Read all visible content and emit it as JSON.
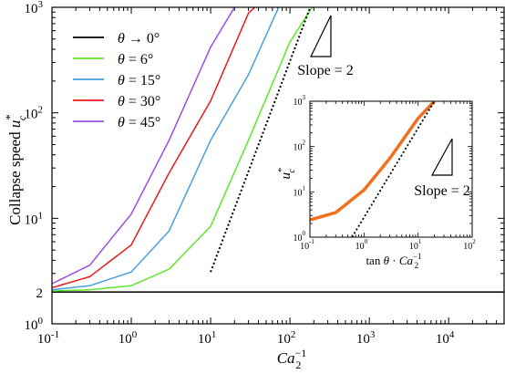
{
  "chart_data": [
    {
      "type": "line",
      "xscale": "log",
      "yscale": "log",
      "xlim": [
        0.1,
        50000
      ],
      "ylim": [
        1,
        1000
      ],
      "xlabel_main": "Ca",
      "xlabel_sub": "2",
      "xlabel_sup": "−1",
      "ylabel_main": "Collapse speed u",
      "ylabel_sub": "c",
      "ylabel_sup": "*",
      "x_ticks": [
        {
          "value": 0.1,
          "base": "10",
          "exp": "-1"
        },
        {
          "value": 1,
          "base": "10",
          "exp": "0"
        },
        {
          "value": 10,
          "base": "10",
          "exp": "1"
        },
        {
          "value": 100,
          "base": "10",
          "exp": "2"
        },
        {
          "value": 1000,
          "base": "10",
          "exp": "3"
        },
        {
          "value": 10000,
          "base": "10",
          "exp": "4"
        }
      ],
      "y_ticks": [
        {
          "value": 1,
          "base": "10",
          "exp": "0"
        },
        {
          "value": 2,
          "base": "2",
          "exp": ""
        },
        {
          "value": 10,
          "base": "10",
          "exp": "1"
        },
        {
          "value": 100,
          "base": "10",
          "exp": "2"
        },
        {
          "value": 1000,
          "base": "10",
          "exp": "3"
        }
      ],
      "legend_position": "top-left",
      "series": [
        {
          "name": "θ → 0°",
          "color": "#000000",
          "angle_deg": 0,
          "x": [
            0.1,
            50000
          ],
          "y": [
            2,
            2
          ]
        },
        {
          "name": "θ = 6°",
          "color": "#5ee62e",
          "angle_deg": 6,
          "x": [
            0.1,
            0.3,
            1,
            3,
            10,
            30,
            100,
            190
          ],
          "y": [
            2.05,
            2.1,
            2.3,
            3.3,
            8.4,
            55,
            470,
            1000
          ]
        },
        {
          "name": "θ = 15°",
          "color": "#4a9fe0",
          "angle_deg": 15,
          "x": [
            0.1,
            0.3,
            1,
            3,
            10,
            30,
            72
          ],
          "y": [
            2.1,
            2.3,
            3.1,
            7.6,
            55,
            230,
            1000
          ]
        },
        {
          "name": "θ = 30°",
          "color": "#e81a1a",
          "angle_deg": 30,
          "x": [
            0.1,
            0.3,
            1,
            3,
            10,
            30,
            36
          ],
          "y": [
            2.2,
            2.8,
            5.6,
            27,
            130,
            880,
            1000
          ]
        },
        {
          "name": "θ = 45°",
          "color": "#9b4fe0",
          "angle_deg": 45,
          "x": [
            0.1,
            0.3,
            1,
            3,
            10,
            20
          ],
          "y": [
            2.4,
            3.6,
            11,
            55,
            420,
            1000
          ]
        }
      ],
      "reference_line": {
        "style": "dotted",
        "slope": 2,
        "x": [
          10,
          180
        ],
        "y": [
          3.1,
          1000
        ]
      },
      "slope_annotation": "Slope = 2"
    },
    {
      "type": "line",
      "inset": true,
      "xscale": "log",
      "yscale": "log",
      "xlim": [
        0.1,
        100
      ],
      "ylim": [
        1,
        1000
      ],
      "xlabel": "tan θ · Ca",
      "xlabel_sub": "2",
      "xlabel_sup": "−1",
      "ylabel_main": "u",
      "ylabel_sub": "c",
      "ylabel_sup": "*",
      "x_ticks": [
        {
          "value": 0.1,
          "base": "10",
          "exp": "-1"
        },
        {
          "value": 1,
          "base": "10",
          "exp": "0"
        },
        {
          "value": 10,
          "base": "10",
          "exp": "1"
        },
        {
          "value": 100,
          "base": "10",
          "exp": "2"
        }
      ],
      "y_ticks": [
        {
          "value": 1,
          "base": "10",
          "exp": "0"
        },
        {
          "value": 10,
          "base": "10",
          "exp": "1"
        },
        {
          "value": 100,
          "base": "10",
          "exp": "2"
        },
        {
          "value": 1000,
          "base": "10",
          "exp": "3"
        }
      ],
      "series": [
        {
          "name": "",
          "color": "#f07020",
          "x": [
            0.1,
            0.3,
            1,
            3,
            10,
            20
          ],
          "y": [
            2.4,
            3.5,
            11,
            55,
            420,
            1000
          ]
        }
      ],
      "reference_line": {
        "style": "dotted",
        "slope": 2,
        "x": [
          0.6,
          20
        ],
        "y": [
          1,
          1000
        ]
      },
      "slope_annotation": "Slope = 2"
    }
  ]
}
